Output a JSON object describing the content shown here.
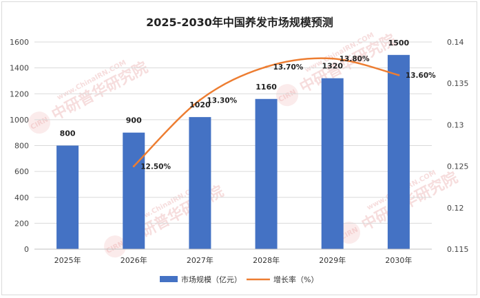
{
  "chart_data": {
    "type": "bar+line",
    "title": "2025-2030年中国养发市场规模预测",
    "categories": [
      "2025年",
      "2026年",
      "2027年",
      "2028年",
      "2029年",
      "2030年"
    ],
    "series": [
      {
        "name": "市场规模（亿元）",
        "type": "bar",
        "axis": "left",
        "color": "#4472c4",
        "values": [
          800,
          900,
          1020,
          1160,
          1320,
          1500
        ],
        "labels": [
          "800",
          "900",
          "1020",
          "1160",
          "1320",
          "1500"
        ]
      },
      {
        "name": "增长率（%）",
        "type": "line",
        "axis": "right",
        "color": "#ed7d31",
        "values": [
          null,
          0.125,
          0.133,
          0.137,
          0.138,
          0.136
        ],
        "labels": [
          "",
          "12.50%",
          "13.30%",
          "13.70%",
          "13.80%",
          "13.60%"
        ]
      }
    ],
    "y_left": {
      "min": 0,
      "max": 1600,
      "ticks": [
        "0",
        "200",
        "400",
        "600",
        "800",
        "1000",
        "1200",
        "1400",
        "1600"
      ]
    },
    "y_right": {
      "min": 0.115,
      "max": 0.14,
      "ticks": [
        "0.115",
        "0.12",
        "0.125",
        "0.13",
        "0.135",
        "0.14"
      ]
    },
    "legend_position": "bottom",
    "grid": true
  },
  "watermark": {
    "logo": "CIRN",
    "text": "中研普华研究院",
    "url": "www.ChinaIRN.COM"
  }
}
